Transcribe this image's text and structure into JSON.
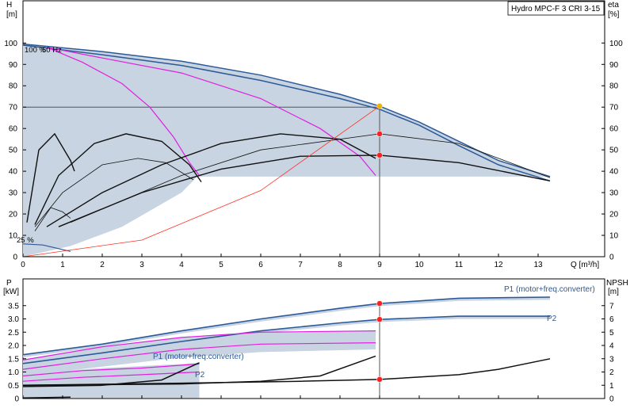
{
  "chart_data": [
    {
      "type": "line",
      "title": "Hydro MPC-F 3 CRI 3-15",
      "ylabel": "H",
      "yunit": "[m]",
      "ylabel_right": "eta",
      "yunit_right": "[%]",
      "xlabel": "Q [m³/h]",
      "xlim": [
        0,
        14
      ],
      "ylim": [
        0,
        110
      ],
      "x_ticks": [
        0,
        1,
        2,
        3,
        4,
        5,
        6,
        7,
        8,
        9,
        10,
        11,
        12,
        13
      ],
      "y_ticks": [
        0,
        10,
        20,
        30,
        40,
        50,
        60,
        70,
        80,
        90,
        100
      ],
      "grid": false,
      "annotations": [
        "100 %",
        "50 Hz",
        "25 %"
      ],
      "duty_point": {
        "q": 9.0,
        "h": 70
      },
      "operating_region_min_head": 37.5,
      "series": [
        {
          "role": "envelope",
          "color": "#8aa6c8",
          "points": [
            [
              0,
              99.5
            ],
            [
              2,
              96
            ],
            [
              4,
              91.5
            ],
            [
              6,
              85
            ],
            [
              8,
              76
            ],
            [
              9,
              70.5
            ],
            [
              10,
              63
            ],
            [
              11,
              54
            ],
            [
              12,
              45
            ],
            [
              13.3,
              37.5
            ]
          ]
        },
        {
          "role": "pump_curve_max",
          "color": "#2c5a96",
          "points": [
            [
              0,
              99.5
            ],
            [
              2,
              96
            ],
            [
              4,
              91.5
            ],
            [
              6,
              85
            ],
            [
              8,
              76
            ],
            [
              9,
              70.5
            ],
            [
              10,
              63
            ],
            [
              11,
              54
            ],
            [
              12,
              45
            ],
            [
              13.3,
              37.5
            ]
          ]
        },
        {
          "role": "pump_curve_low",
          "color": "#2c5a96",
          "points": [
            [
              0,
              99
            ],
            [
              2,
              94.5
            ],
            [
              4,
              89.5
            ],
            [
              6,
              82.5
            ],
            [
              8,
              74
            ],
            [
              9,
              69
            ],
            [
              10,
              61.5
            ],
            [
              11,
              52
            ],
            [
              12,
              43
            ],
            [
              13.3,
              35.5
            ]
          ]
        },
        {
          "role": "head_1_pump",
          "color": "#e020e0",
          "points": [
            [
              0.6,
              98
            ],
            [
              1.5,
              91
            ],
            [
              2.5,
              81
            ],
            [
              3.2,
              70
            ],
            [
              3.8,
              56
            ],
            [
              4.2,
              44
            ],
            [
              4.45,
              38
            ]
          ]
        },
        {
          "role": "head_2_pumps",
          "color": "#e020e0",
          "points": [
            [
              0.6,
              98
            ],
            [
              2,
              93
            ],
            [
              4,
              86
            ],
            [
              6,
              74
            ],
            [
              7.5,
              60
            ],
            [
              8.5,
              47
            ],
            [
              8.9,
              38
            ]
          ]
        },
        {
          "role": "efficiency_1_pump",
          "color": "#111111",
          "points": [
            [
              0.3,
              15
            ],
            [
              0.9,
              38
            ],
            [
              1.8,
              53
            ],
            [
              2.6,
              57.5
            ],
            [
              3.5,
              54
            ],
            [
              4.2,
              43
            ],
            [
              4.5,
              35
            ]
          ]
        },
        {
          "role": "efficiency_1_pump_b",
          "color": "#111111",
          "points": [
            [
              0.3,
              14
            ],
            [
              1,
              30
            ],
            [
              2,
              43
            ],
            [
              2.9,
              46
            ],
            [
              3.6,
              44
            ],
            [
              4.3,
              36
            ]
          ]
        },
        {
          "role": "efficiency_2_pumps",
          "color": "#111111",
          "points": [
            [
              0.6,
              14
            ],
            [
              2,
              30
            ],
            [
              3.5,
              43
            ],
            [
              5,
              53
            ],
            [
              6.5,
              57.5
            ],
            [
              8,
              55
            ],
            [
              8.9,
              46
            ]
          ]
        },
        {
          "role": "efficiency_3_pumps",
          "color": "#111111",
          "points": [
            [
              0.9,
              14
            ],
            [
              3,
              30
            ],
            [
              5,
              41
            ],
            [
              7,
              47
            ],
            [
              9,
              47.5
            ],
            [
              11,
              44
            ],
            [
              13.3,
              35.5
            ]
          ]
        },
        {
          "role": "efficiency_3_pumps_b",
          "color": "#111111",
          "points": [
            [
              1.2,
              16
            ],
            [
              4,
              38
            ],
            [
              6,
              50
            ],
            [
              9,
              57.5
            ],
            [
              11,
              53
            ],
            [
              13.3,
              37
            ]
          ]
        },
        {
          "role": "efficiency_small",
          "color": "#111111",
          "points": [
            [
              0.1,
              16
            ],
            [
              0.4,
              50
            ],
            [
              0.8,
              57.5
            ],
            [
              1.2,
              45
            ],
            [
              1.3,
              40
            ]
          ]
        },
        {
          "role": "efficiency_small_b",
          "color": "#111111",
          "points": [
            [
              0.3,
              12
            ],
            [
              0.7,
              23
            ],
            [
              1,
              21
            ],
            [
              1.2,
              18
            ]
          ]
        },
        {
          "role": "min_speed_curve",
          "color": "#2c5a96",
          "points": [
            [
              0,
              6
            ],
            [
              0.5,
              5.5
            ],
            [
              1.2,
              2.5
            ]
          ]
        },
        {
          "role": "system_curve",
          "color": "#ff3020",
          "points": [
            [
              0,
              0
            ],
            [
              3,
              7.8
            ],
            [
              6,
              31
            ],
            [
              9,
              70.5
            ]
          ]
        }
      ],
      "markers": [
        {
          "q": 9,
          "h": 70.5,
          "color": "#f0b000"
        },
        {
          "q": 9,
          "h": 57.5,
          "color": "#ff2020"
        },
        {
          "q": 9,
          "h": 47.5,
          "color": "#ff2020"
        }
      ]
    },
    {
      "type": "line",
      "ylabel": "P",
      "yunit": "[kW]",
      "ylabel_right": "NPSH",
      "yunit_right": "[m]",
      "xlim": [
        0,
        14
      ],
      "ylim": [
        0,
        4.0
      ],
      "y_ticks": [
        0,
        0.5,
        1.0,
        1.5,
        2.0,
        2.5,
        3.0,
        3.5
      ],
      "y_tick_labels": [
        "0",
        "0.5",
        "1.0",
        "1.5",
        "2.0",
        "2.5",
        "3.0",
        "3.5"
      ],
      "y_ticks_right": [
        0,
        1,
        2,
        3,
        4,
        5,
        6,
        7
      ],
      "annotations": [
        "P1 (motor+freq.converter)",
        "P2",
        "P1 (motor+freq.converter)",
        "P2"
      ],
      "series": [
        {
          "role": "p1_max",
          "color": "#2c5a96",
          "points": [
            [
              0,
              1.65
            ],
            [
              2,
              2.05
            ],
            [
              4,
              2.55
            ],
            [
              6,
              3.0
            ],
            [
              8,
              3.4
            ],
            [
              9,
              3.58
            ],
            [
              11,
              3.78
            ],
            [
              13.3,
              3.82
            ]
          ]
        },
        {
          "role": "p2_max",
          "color": "#2c5a96",
          "points": [
            [
              0,
              1.32
            ],
            [
              2,
              1.72
            ],
            [
              4,
              2.15
            ],
            [
              6,
              2.55
            ],
            [
              8,
              2.85
            ],
            [
              9,
              2.98
            ],
            [
              11,
              3.1
            ],
            [
              13.3,
              3.1
            ]
          ]
        },
        {
          "role": "p1_2pumps",
          "color": "#e020e0",
          "points": [
            [
              0,
              1.45
            ],
            [
              2,
              1.95
            ],
            [
              4,
              2.3
            ],
            [
              6,
              2.5
            ],
            [
              8.9,
              2.55
            ]
          ]
        },
        {
          "role": "p2_2pumps",
          "color": "#e020e0",
          "points": [
            [
              0,
              1.1
            ],
            [
              2,
              1.5
            ],
            [
              4,
              1.85
            ],
            [
              6,
              2.05
            ],
            [
              8.9,
              2.1
            ]
          ]
        },
        {
          "role": "p1_1pump",
          "color": "#e020e0",
          "points": [
            [
              0,
              0.85
            ],
            [
              1.5,
              1.05
            ],
            [
              3,
              1.15
            ],
            [
              4.45,
              1.3
            ]
          ]
        },
        {
          "role": "p2_1pump",
          "color": "#e020e0",
          "points": [
            [
              0,
              0.65
            ],
            [
              1.5,
              0.8
            ],
            [
              3,
              0.9
            ],
            [
              4.45,
              1.0
            ]
          ]
        },
        {
          "role": "npsh_3",
          "color": "#111111",
          "points": [
            [
              0,
              0.5
            ],
            [
              4,
              0.58
            ],
            [
              7,
              0.65
            ],
            [
              9,
              0.72
            ],
            [
              11,
              0.9
            ],
            [
              12,
              1.1
            ],
            [
              13.3,
              1.5
            ]
          ]
        },
        {
          "role": "npsh_2",
          "color": "#111111",
          "points": [
            [
              0,
              0.5
            ],
            [
              4,
              0.55
            ],
            [
              6,
              0.65
            ],
            [
              7.5,
              0.85
            ],
            [
              8.9,
              1.6
            ]
          ]
        },
        {
          "role": "npsh_1",
          "color": "#111111",
          "points": [
            [
              0,
              0.45
            ],
            [
              2,
              0.5
            ],
            [
              3.5,
              0.7
            ],
            [
              4.45,
              1.35
            ]
          ]
        },
        {
          "role": "npsh_min",
          "color": "#111111",
          "points": [
            [
              0,
              0.02
            ],
            [
              1.2,
              0.05
            ]
          ]
        }
      ],
      "markers": [
        {
          "q": 9,
          "p": 3.58,
          "color": "#ff2020"
        },
        {
          "q": 9,
          "p": 2.98,
          "color": "#ff2020"
        },
        {
          "q": 9,
          "p": 0.72,
          "color": "#ff2020"
        }
      ]
    }
  ]
}
